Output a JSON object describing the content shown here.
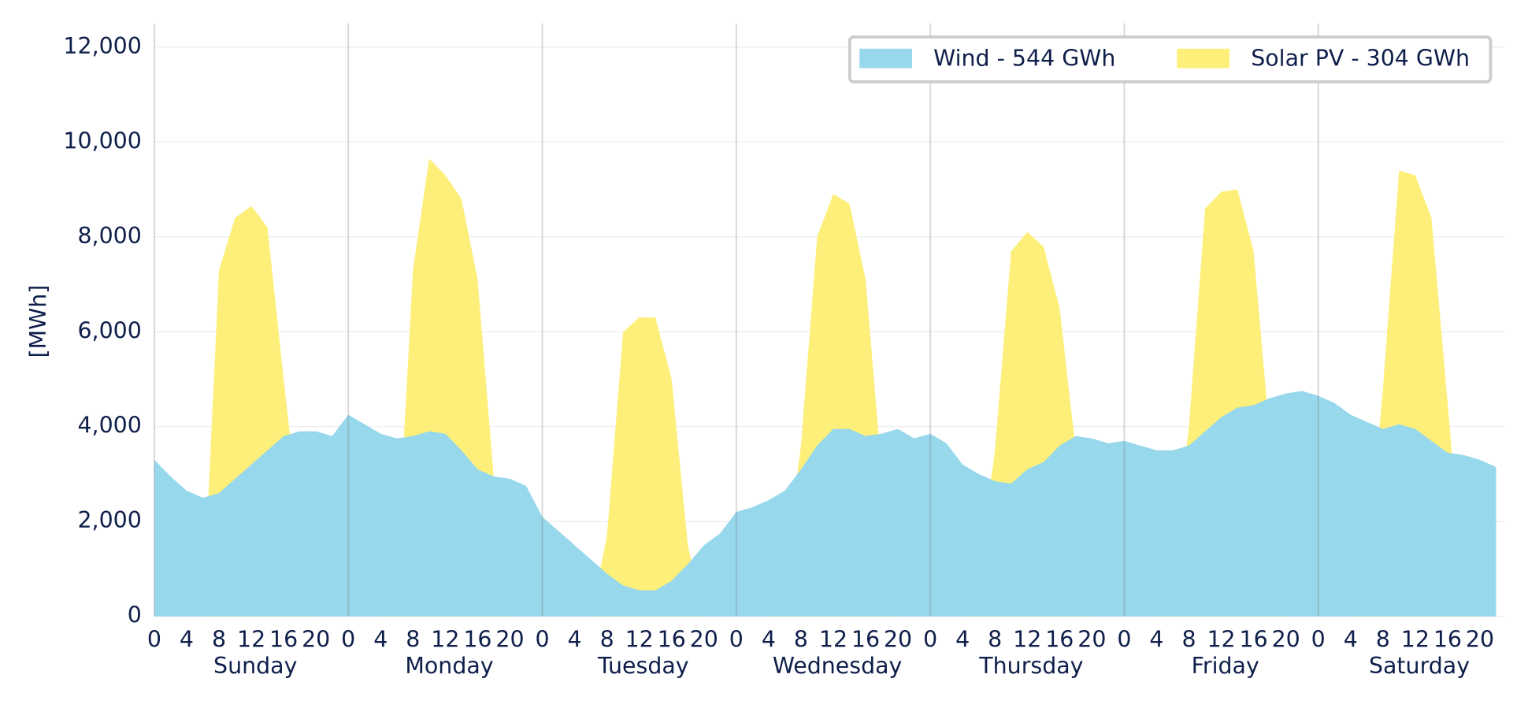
{
  "chart_data": {
    "type": "area",
    "y_label": "[MWh]",
    "legend": "upper right",
    "x": [
      0,
      2,
      4,
      6,
      8,
      10,
      12,
      14,
      16,
      18,
      20,
      22,
      24,
      26,
      28,
      30,
      32,
      34,
      36,
      38,
      40,
      42,
      44,
      46,
      48,
      50,
      52,
      54,
      56,
      58,
      60,
      62,
      64,
      66,
      68,
      70,
      72,
      74,
      76,
      78,
      80,
      82,
      84,
      86,
      88,
      90,
      92,
      94,
      96,
      98,
      100,
      102,
      104,
      106,
      108,
      110,
      112,
      114,
      116,
      118,
      120,
      122,
      124,
      126,
      128,
      130,
      132,
      134,
      136,
      138,
      140,
      142,
      144,
      146,
      148,
      150,
      152,
      154,
      156,
      158,
      160,
      162,
      164,
      166
    ],
    "series": [
      {
        "name": "Wind - 544 GWh",
        "color": "#97d8ec",
        "values": [
          3300,
          2950,
          2650,
          2500,
          2600,
          2900,
          3200,
          3500,
          3800,
          3900,
          3900,
          3800,
          4250,
          4050,
          3850,
          3750,
          3800,
          3900,
          3850,
          3500,
          3100,
          2950,
          2900,
          2750,
          2100,
          1800,
          1500,
          1200,
          900,
          650,
          550,
          550,
          750,
          1100,
          1500,
          1750,
          2200,
          2300,
          2450,
          2650,
          3100,
          3600,
          3950,
          3950,
          3800,
          3850,
          3950,
          3750,
          3850,
          3650,
          3200,
          3000,
          2850,
          2800,
          3100,
          3250,
          3600,
          3800,
          3750,
          3650,
          3700,
          3600,
          3500,
          3500,
          3600,
          3900,
          4200,
          4400,
          4450,
          4600,
          4700,
          4750,
          4650,
          4500,
          4250,
          4100,
          3950,
          4050,
          3950,
          3700,
          3450,
          3400,
          3300,
          3150
        ]
      },
      {
        "name": "Solar PV - 304 GWh",
        "color": "#fdef79",
        "values": [
          0,
          0,
          0,
          0,
          7300,
          8400,
          8650,
          8200,
          5000,
          2000,
          0,
          0,
          0,
          0,
          0,
          1000,
          7300,
          9650,
          9300,
          8800,
          7100,
          2900,
          0,
          0,
          0,
          0,
          0,
          0,
          1700,
          6000,
          6300,
          6300,
          5000,
          1500,
          0,
          0,
          0,
          0,
          0,
          1000,
          3600,
          8000,
          8900,
          8700,
          7100,
          3000,
          0,
          0,
          0,
          0,
          0,
          1000,
          3500,
          7700,
          8100,
          7800,
          6500,
          3500,
          0,
          0,
          0,
          0,
          0,
          1000,
          4000,
          8600,
          8950,
          9000,
          7700,
          3800,
          0,
          0,
          0,
          0,
          0,
          1000,
          4800,
          9400,
          9300,
          8400,
          4500,
          500,
          0,
          0
        ]
      }
    ],
    "xlim": [
      0,
      167
    ],
    "xticks": [
      {
        "value": 0,
        "label": "0"
      },
      {
        "value": 4,
        "label": "4"
      },
      {
        "value": 8,
        "label": "8"
      },
      {
        "value": 12,
        "label": "12"
      },
      {
        "value": 16,
        "label": "16"
      },
      {
        "value": 20,
        "label": "20"
      },
      {
        "value": 24,
        "label": "0"
      },
      {
        "value": 28,
        "label": "4"
      },
      {
        "value": 32,
        "label": "8"
      },
      {
        "value": 36,
        "label": "12"
      },
      {
        "value": 40,
        "label": "16"
      },
      {
        "value": 44,
        "label": "20"
      },
      {
        "value": 48,
        "label": "0"
      },
      {
        "value": 52,
        "label": "4"
      },
      {
        "value": 56,
        "label": "8"
      },
      {
        "value": 60,
        "label": "12"
      },
      {
        "value": 64,
        "label": "16"
      },
      {
        "value": 68,
        "label": "20"
      },
      {
        "value": 72,
        "label": "0"
      },
      {
        "value": 76,
        "label": "4"
      },
      {
        "value": 80,
        "label": "8"
      },
      {
        "value": 84,
        "label": "12"
      },
      {
        "value": 88,
        "label": "16"
      },
      {
        "value": 92,
        "label": "20"
      },
      {
        "value": 96,
        "label": "0"
      },
      {
        "value": 100,
        "label": "4"
      },
      {
        "value": 104,
        "label": "8"
      },
      {
        "value": 108,
        "label": "12"
      },
      {
        "value": 112,
        "label": "16"
      },
      {
        "value": 116,
        "label": "20"
      },
      {
        "value": 120,
        "label": "0"
      },
      {
        "value": 124,
        "label": "4"
      },
      {
        "value": 128,
        "label": "8"
      },
      {
        "value": 132,
        "label": "12"
      },
      {
        "value": 136,
        "label": "16"
      },
      {
        "value": 140,
        "label": "20"
      },
      {
        "value": 144,
        "label": "0"
      },
      {
        "value": 148,
        "label": "4"
      },
      {
        "value": 152,
        "label": "8"
      },
      {
        "value": 156,
        "label": "12"
      },
      {
        "value": 160,
        "label": "16"
      },
      {
        "value": 164,
        "label": "20"
      }
    ],
    "days": [
      "Sunday",
      "Monday",
      "Tuesday",
      "Wednesday",
      "Thursday",
      "Friday",
      "Saturday"
    ],
    "ylim": [
      0,
      12500
    ],
    "yticks": [
      0,
      {
        "value": 2000,
        "label": "2,000"
      },
      {
        "value": 4000,
        "label": "4,000"
      },
      {
        "value": 6000,
        "label": "6,000"
      },
      {
        "value": 8000,
        "label": "8,000"
      },
      {
        "value": 10000,
        "label": "10,000"
      },
      {
        "value": 12000,
        "label": "12,000"
      }
    ],
    "grid": true
  }
}
